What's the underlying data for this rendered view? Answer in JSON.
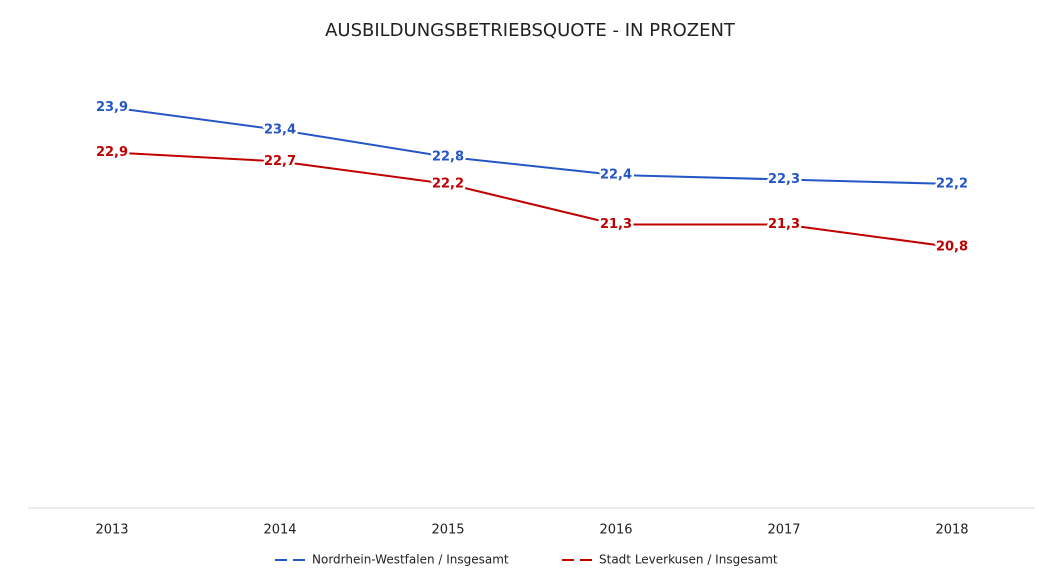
{
  "chart_data": {
    "type": "line",
    "title": "AUSBILDUNGSBETRIEBSQUOTE - IN PROZENT",
    "categories": [
      "2013",
      "2014",
      "2015",
      "2016",
      "2017",
      "2018"
    ],
    "series": [
      {
        "name": "Nordrhein-Westfalen / Insgesamt",
        "color": "#2457c5",
        "values": [
          23.9,
          23.4,
          22.8,
          22.4,
          22.3,
          22.2
        ],
        "value_labels": [
          "23,9",
          "23,4",
          "22,8",
          "22,4",
          "22,3",
          "22,2"
        ]
      },
      {
        "name": "Stadt Leverkusen / Insgesamt",
        "color": "#c00000",
        "values": [
          22.9,
          22.7,
          22.2,
          21.3,
          21.3,
          20.8
        ],
        "value_labels": [
          "22,9",
          "22,7",
          "22,2",
          "21,3",
          "21,3",
          "20,8"
        ]
      }
    ],
    "ylim": [
      15,
      25
    ],
    "legend": "bottom"
  }
}
